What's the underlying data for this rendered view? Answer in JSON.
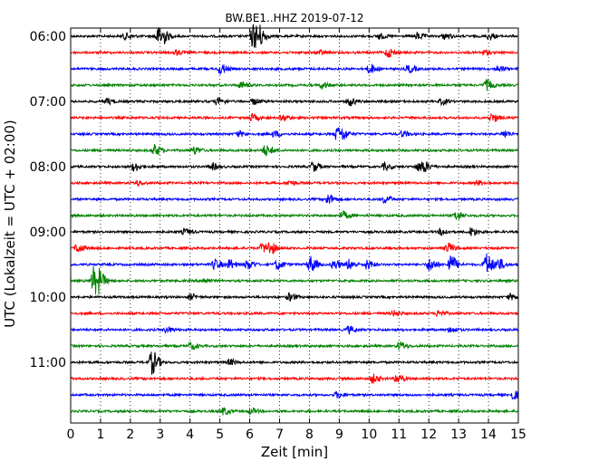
{
  "chart_data": {
    "type": "line",
    "title": "BW.BE1..HHZ 2019-07-12",
    "xlabel": "Zeit  [min]",
    "ylabel": "UTC (Lokalzeit = UTC + 02:00)",
    "xlim": [
      0,
      15
    ],
    "x_ticks": [
      "0",
      "1",
      "2",
      "3",
      "4",
      "5",
      "6",
      "7",
      "8",
      "9",
      "10",
      "11",
      "12",
      "13",
      "14",
      "15"
    ],
    "y_tick_labels": [
      "06:00",
      "07:00",
      "08:00",
      "09:00",
      "10:00",
      "11:00"
    ],
    "grid": "vertical-dotted",
    "trace_colors": [
      "#000000",
      "#ff0000",
      "#0000ff",
      "#008000"
    ],
    "trace_starts": [
      "06:00",
      "06:15",
      "06:30",
      "06:45",
      "07:00",
      "07:15",
      "07:30",
      "07:45",
      "08:00",
      "08:15",
      "08:30",
      "08:45",
      "09:00",
      "09:15",
      "09:30",
      "09:45",
      "10:00",
      "10:15",
      "10:30",
      "10:45",
      "11:00",
      "11:15",
      "11:30",
      "11:45"
    ],
    "series": [
      {
        "events": [
          [
            1.8,
            0.35
          ],
          [
            2.9,
            0.9
          ],
          [
            3.05,
            0.5
          ],
          [
            6.1,
            1.4
          ],
          [
            6.3,
            0.7
          ],
          [
            10.3,
            0.3
          ],
          [
            11.6,
            0.35
          ],
          [
            12.5,
            0.3
          ],
          [
            14.0,
            0.3
          ]
        ]
      },
      {
        "events": [
          [
            3.5,
            0.25
          ],
          [
            8.3,
            0.25
          ],
          [
            10.6,
            0.5
          ],
          [
            13.8,
            0.25
          ]
        ]
      },
      {
        "events": [
          [
            5.0,
            0.55
          ],
          [
            10.0,
            0.5
          ],
          [
            11.3,
            0.4
          ],
          [
            14.3,
            0.3
          ]
        ]
      },
      {
        "events": [
          [
            5.7,
            0.35
          ],
          [
            8.4,
            0.3
          ],
          [
            13.9,
            0.55
          ]
        ]
      },
      {
        "events": [
          [
            1.2,
            0.3
          ],
          [
            4.9,
            0.35
          ],
          [
            6.1,
            0.3
          ],
          [
            9.3,
            0.45
          ],
          [
            12.4,
            0.3
          ]
        ]
      },
      {
        "events": [
          [
            6.05,
            0.35
          ],
          [
            7.1,
            0.3
          ],
          [
            14.1,
            0.45
          ]
        ]
      },
      {
        "events": [
          [
            5.6,
            0.3
          ],
          [
            6.8,
            0.3
          ],
          [
            8.9,
            0.7
          ],
          [
            9.1,
            0.4
          ],
          [
            11.1,
            0.3
          ],
          [
            14.5,
            0.35
          ]
        ]
      },
      {
        "events": [
          [
            2.8,
            0.6
          ],
          [
            4.1,
            0.4
          ],
          [
            6.5,
            0.55
          ]
        ]
      },
      {
        "events": [
          [
            2.1,
            0.45
          ],
          [
            4.7,
            0.35
          ],
          [
            8.1,
            0.5
          ],
          [
            10.5,
            0.35
          ],
          [
            11.6,
            0.4
          ],
          [
            11.8,
            0.5
          ]
        ]
      },
      {
        "events": [
          [
            2.2,
            0.25
          ],
          [
            7.3,
            0.25
          ],
          [
            13.6,
            0.25
          ]
        ]
      },
      {
        "events": [
          [
            8.6,
            0.55
          ],
          [
            10.5,
            0.4
          ]
        ]
      },
      {
        "events": [
          [
            9.1,
            0.4
          ],
          [
            12.9,
            0.45
          ]
        ]
      },
      {
        "events": [
          [
            3.8,
            0.3
          ],
          [
            12.4,
            0.35
          ],
          [
            13.4,
            0.45
          ]
        ]
      },
      {
        "events": [
          [
            0.2,
            0.45
          ],
          [
            6.4,
            0.45
          ],
          [
            6.65,
            0.6
          ],
          [
            12.6,
            0.55
          ]
        ]
      },
      {
        "events": [
          [
            4.8,
            0.55
          ],
          [
            5.3,
            0.5
          ],
          [
            5.9,
            0.5
          ],
          [
            6.9,
            0.5
          ],
          [
            8.0,
            0.9
          ],
          [
            8.8,
            0.5
          ],
          [
            9.3,
            0.55
          ],
          [
            9.9,
            0.5
          ],
          [
            12.0,
            0.7
          ],
          [
            12.7,
            1.0
          ],
          [
            13.9,
            1.2
          ],
          [
            14.3,
            0.6
          ]
        ]
      },
      {
        "events": [
          [
            0.75,
            1.5
          ],
          [
            0.95,
            0.6
          ],
          [
            4.4,
            0.3
          ]
        ]
      },
      {
        "events": [
          [
            4.0,
            0.3
          ],
          [
            7.3,
            0.4
          ],
          [
            14.7,
            0.3
          ]
        ]
      },
      {
        "events": [
          [
            10.8,
            0.3
          ],
          [
            12.3,
            0.3
          ]
        ]
      },
      {
        "events": [
          [
            3.2,
            0.3
          ],
          [
            9.3,
            0.35
          ],
          [
            12.7,
            0.3
          ]
        ]
      },
      {
        "events": [
          [
            4.0,
            0.35
          ],
          [
            11.0,
            0.4
          ]
        ]
      },
      {
        "events": [
          [
            2.7,
            1.3
          ],
          [
            5.3,
            0.3
          ]
        ]
      },
      {
        "events": [
          [
            10.1,
            0.45
          ],
          [
            10.9,
            0.5
          ]
        ]
      },
      {
        "events": [
          [
            8.9,
            0.3
          ],
          [
            14.8,
            0.45
          ]
        ]
      },
      {
        "events": [
          [
            5.1,
            0.35
          ],
          [
            6.0,
            0.3
          ]
        ]
      }
    ]
  }
}
